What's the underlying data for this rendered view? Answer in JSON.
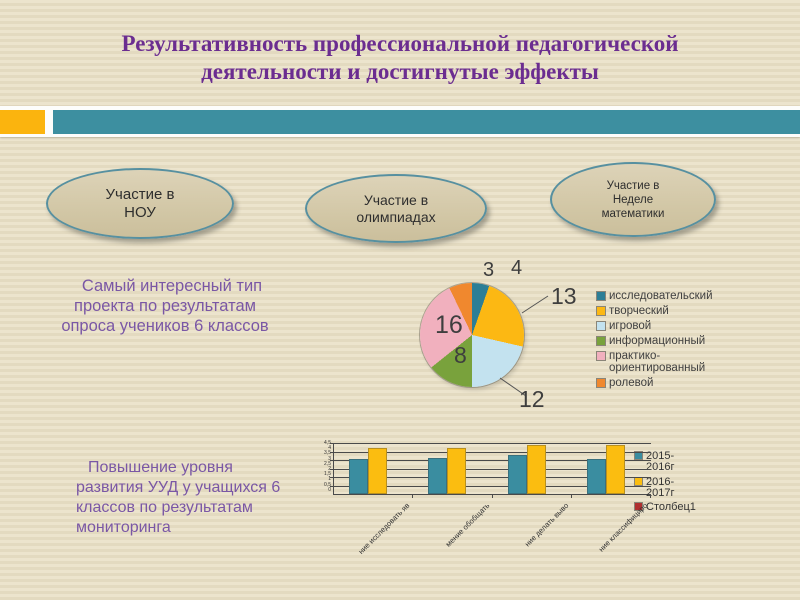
{
  "slide": {
    "title_lines": [
      "Результативность профессиональной педагогической",
      "деятельности и достигнутые эффекты"
    ],
    "title_color": "#6B2D90",
    "accent_colors": {
      "orange_block": "#FBB40E",
      "teal_bar": "#3D8FA0"
    }
  },
  "ovals": [
    {
      "lines": [
        "Участие в",
        "НОУ"
      ]
    },
    {
      "lines": [
        "Участие в",
        "олимпиадах"
      ]
    },
    {
      "lines": [
        "Участие в",
        "Неделе",
        "математики"
      ]
    }
  ],
  "captions": {
    "pie": [
      "Самый интересный тип",
      "проекта по результатам",
      "опроса учеников 6 классов"
    ],
    "bar": [
      "Повышение уровня",
      "развития УУД у учащихся 6",
      "классов по результатам",
      "мониторинга"
    ],
    "text_color": "#7A57A5"
  },
  "chart_data": [
    {
      "type": "pie",
      "title": "",
      "legend_position": "right",
      "data_labels": true,
      "slices": [
        {
          "label": "исследовательский",
          "value": 3,
          "color": "#2C7E96"
        },
        {
          "label": "творческий",
          "value": 13,
          "color": "#FCB813"
        },
        {
          "label": "игровой",
          "value": 12,
          "color": "#C3E2EF"
        },
        {
          "label": "информационный",
          "value": 8,
          "color": "#79A23C"
        },
        {
          "label": "практико-ориентированный",
          "value": 16,
          "color": "#F1B0BE"
        },
        {
          "label": "ролевой",
          "value": 4,
          "color": "#F0882E"
        }
      ]
    },
    {
      "type": "bar",
      "categories": [
        "ние исследовать яв",
        "мение обобщать",
        "ние делать выво",
        "ние классифициро"
      ],
      "series": [
        {
          "name": "2015-2016г",
          "color": "#3A8DA0",
          "values": [
            3.1,
            3.2,
            3.4,
            3.1
          ]
        },
        {
          "name": "2016-2017г",
          "color": "#FBBD10",
          "values": [
            4.1,
            4.1,
            4.3,
            4.3
          ]
        },
        {
          "name": "Столбец1",
          "color": "#B03030",
          "values": [
            0,
            0,
            0,
            0
          ]
        }
      ],
      "ylim": [
        0,
        4.5
      ],
      "yticks": [
        "4,5",
        "4",
        "3,5",
        "3",
        "2,5",
        "2",
        "1,5",
        "1",
        "0,5",
        "0"
      ],
      "grid": true,
      "legend_position": "right"
    }
  ]
}
